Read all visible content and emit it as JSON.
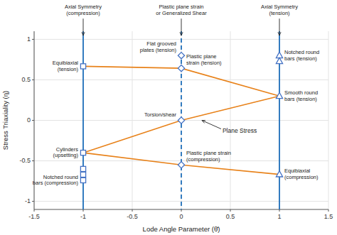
{
  "chart_data": {
    "type": "scatter",
    "xlabel": "Lode Angle Parameter  (θ̄)",
    "ylabel": "Stress Triaxiality  (η)",
    "xlim": [
      -1.5,
      1.5
    ],
    "ylim": [
      -1.1,
      1.1
    ],
    "xticks": [
      -1.5,
      -1,
      -0.5,
      0,
      0.5,
      1,
      1.5
    ],
    "yticks": [
      -1,
      -0.5,
      0,
      0.5,
      1
    ],
    "grid": true,
    "reference_lines": [
      {
        "x": -1.0,
        "color": "#1f6fba",
        "line_style": "solid",
        "label": "Axial Symmetry\n(compression)"
      },
      {
        "x": 0.0,
        "color": "#1f6fba",
        "line_style": "dashed",
        "label": "Plastic plane strain\nor Generalized Shear"
      },
      {
        "x": 1.0,
        "color": "#1f6fba",
        "line_style": "solid",
        "label": "Axial Symmetry\n(tension)"
      }
    ],
    "lines": [
      {
        "x": [
          -1.0,
          0.0,
          1.0
        ],
        "values": [
          0.667,
          0.643,
          0.3
        ],
        "color": "#E8821A"
      },
      {
        "x": [
          -1.0,
          0.0,
          1.0
        ],
        "values": [
          -0.4,
          0.0,
          0.3
        ],
        "color": "#E8821A"
      },
      {
        "x": [
          -1.0,
          0.0,
          1.0
        ],
        "values": [
          -0.4,
          -0.55,
          -0.667
        ],
        "color": "#E8821A"
      }
    ],
    "points": [
      {
        "marker": "square",
        "color": "#4472C4",
        "x": [
          -1.0,
          -1.0,
          -1.0,
          -1.0,
          -1.0
        ],
        "values": [
          0.667,
          -0.4,
          -0.6,
          -0.67,
          -0.74
        ],
        "labels": [
          "Equibiaxial\n(tension)",
          "Cylinders\n(upsetting)",
          null,
          null,
          "Notched round\nbars (compression)"
        ]
      },
      {
        "marker": "diamond",
        "color": "#4472C4",
        "x": [
          0.0,
          0.0,
          0.0,
          0.0
        ],
        "values": [
          0.8,
          0.643,
          0.0,
          -0.55
        ],
        "labels": [
          "Flat grooved\nplates (tension)",
          "Plastic plane\nstrain (tension)",
          "Torsion/shear",
          "Plastic plane strain\n(compression)"
        ]
      },
      {
        "marker": "triangle",
        "color": "#4472C4",
        "x": [
          1.0,
          1.0,
          1.0,
          1.0
        ],
        "values": [
          0.8,
          0.73,
          0.3,
          -0.667
        ],
        "labels": [
          "Notched round\nbars (tension)",
          null,
          "Smooth round\nbars (tension)",
          "Equibiaxial\n(compression)"
        ]
      }
    ],
    "annotations": [
      {
        "text": "Plane Stress"
      }
    ]
  }
}
